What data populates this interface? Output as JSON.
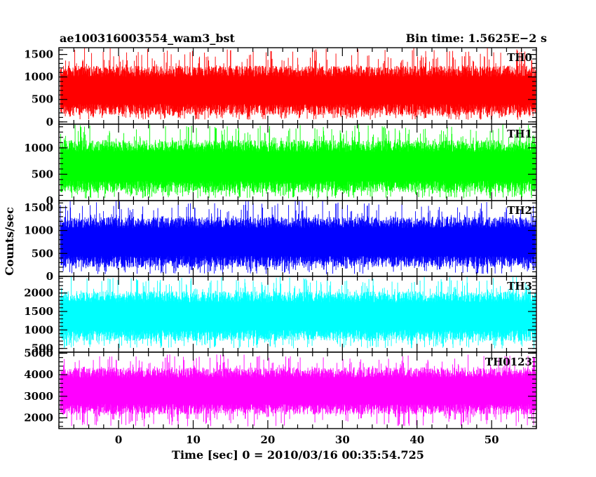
{
  "chart_data": {
    "type": "line",
    "title_left": "ae100316003554_wam3_bst",
    "title_right": "Bin time: 1.5625E−2 s",
    "xlabel": "Time [sec] 0 = 2010/03/16 00:35:54.725",
    "ylabel": "Counts/sec",
    "xlim": [
      -8,
      56
    ],
    "x_ticks": [
      0,
      10,
      20,
      30,
      40,
      50
    ],
    "x_tick_labels": [
      "0",
      "10",
      "20",
      "30",
      "40",
      "50"
    ],
    "data_x_range": [
      -7.8,
      55.9
    ],
    "grid": false,
    "series": [
      {
        "name": "TH0",
        "color": "#ff0000",
        "ylim": [
          -50,
          1650
        ],
        "y_ticks": [
          0,
          500,
          1000,
          1500
        ],
        "y_tick_labels": [
          "0",
          "500",
          "1000",
          "1500"
        ],
        "typical_range": [
          150,
          1250
        ],
        "peak_range": [
          50,
          1650
        ]
      },
      {
        "name": "TH1",
        "color": "#00ff00",
        "ylim": [
          0,
          1450
        ],
        "y_ticks": [
          0,
          500,
          1000
        ],
        "y_tick_labels": [
          "0",
          "500",
          "1000"
        ],
        "typical_range": [
          150,
          1150
        ],
        "peak_range": [
          40,
          1450
        ]
      },
      {
        "name": "TH2",
        "color": "#0000ff",
        "ylim": [
          0,
          1650
        ],
        "y_ticks": [
          0,
          500,
          1000,
          1500
        ],
        "y_tick_labels": [
          "0",
          "500",
          "1000",
          "1500"
        ],
        "typical_range": [
          200,
          1300
        ],
        "peak_range": [
          50,
          1650
        ]
      },
      {
        "name": "TH3",
        "color": "#00ffff",
        "ylim": [
          400,
          2450
        ],
        "y_ticks": [
          500,
          1000,
          1500,
          2000
        ],
        "y_tick_labels": [
          "500",
          "1000",
          "1500",
          "2000"
        ],
        "typical_range": [
          700,
          2050
        ],
        "peak_range": [
          500,
          2450
        ]
      },
      {
        "name": "TH0123",
        "color": "#ff00ff",
        "ylim": [
          1500,
          5050
        ],
        "y_ticks": [
          2000,
          3000,
          4000,
          5000
        ],
        "y_tick_labels": [
          "2000",
          "3000",
          "4000",
          "5000"
        ],
        "typical_range": [
          2150,
          4350
        ],
        "peak_range": [
          1600,
          4950
        ]
      }
    ]
  }
}
